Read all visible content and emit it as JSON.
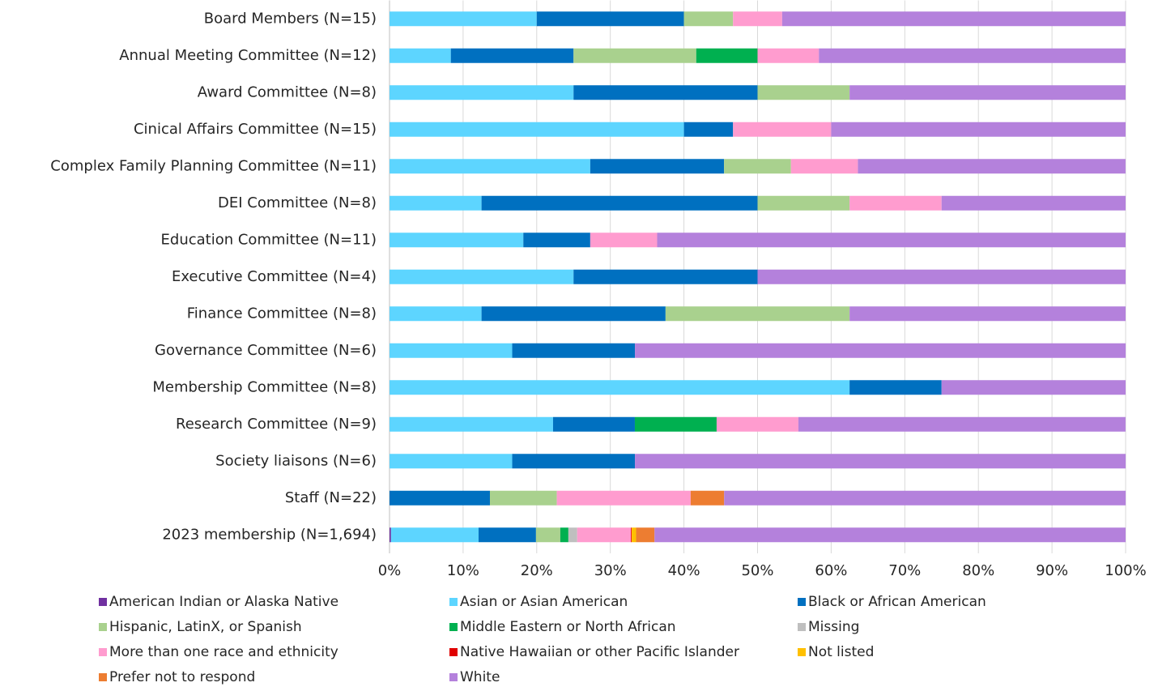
{
  "chart_data": {
    "type": "stacked_barh",
    "categories": [
      "Board Members (N=15)",
      "Annual Meeting Committee (N=12)",
      "Award Committee (N=8)",
      "Cinical Affairs Committee (N=15)",
      "Complex Family Planning Committee (N=11)",
      "DEI Committee (N=8)",
      "Education Committee (N=11)",
      "Executive Committee (N=4)",
      "Finance Committee (N=8)",
      "Governance Committee (N=6)",
      "Membership Committee (N=8)",
      "Research Committee (N=9)",
      "Society liaisons (N=6)",
      "Staff (N=22)",
      "2023 membership (N=1,694)"
    ],
    "series": [
      {
        "name": "American Indian or Alaska Native",
        "color": "#7030a0",
        "values": [
          0,
          0,
          0,
          0,
          0,
          0,
          0,
          0,
          0,
          0,
          0,
          0,
          0,
          0,
          0.2
        ]
      },
      {
        "name": "Asian or Asian American",
        "color": "#5dd5ff",
        "values": [
          20,
          8.33,
          25,
          40,
          27.27,
          12.5,
          18.18,
          25,
          12.5,
          16.67,
          62.5,
          22.22,
          16.67,
          0,
          11.9
        ]
      },
      {
        "name": "Black or African American",
        "color": "#0070c0",
        "values": [
          20,
          16.67,
          25,
          6.67,
          18.18,
          37.5,
          9.09,
          25,
          25,
          16.67,
          12.5,
          11.11,
          16.67,
          13.64,
          7.8
        ]
      },
      {
        "name": "Hispanic, LatinX, or Spanish",
        "color": "#a9d18e",
        "values": [
          6.67,
          16.67,
          12.5,
          0,
          9.09,
          12.5,
          0,
          0,
          25,
          0,
          0,
          0,
          0,
          9.09,
          3.3
        ]
      },
      {
        "name": "Middle Eastern or North African",
        "color": "#00b050",
        "values": [
          0,
          8.33,
          0,
          0,
          0,
          0,
          0,
          0,
          0,
          0,
          0,
          11.11,
          0,
          0,
          1.1
        ]
      },
      {
        "name": "Missing",
        "color": "#bfbfbf",
        "values": [
          0,
          0,
          0,
          0,
          0,
          0,
          0,
          0,
          0,
          0,
          0,
          0,
          0,
          0,
          1.2
        ]
      },
      {
        "name": "More than one race and ethnicity",
        "color": "#ff9ccf",
        "values": [
          6.67,
          8.33,
          0,
          13.33,
          9.09,
          12.5,
          9.09,
          0,
          0,
          0,
          0,
          11.11,
          0,
          18.18,
          7.3
        ]
      },
      {
        "name": "Native Hawaiian or other Pacific Islander",
        "color": "#e00000",
        "values": [
          0,
          0,
          0,
          0,
          0,
          0,
          0,
          0,
          0,
          0,
          0,
          0,
          0,
          0,
          0.1
        ]
      },
      {
        "name": "Not listed",
        "color": "#ffc000",
        "values": [
          0,
          0,
          0,
          0,
          0,
          0,
          0,
          0,
          0,
          0,
          0,
          0,
          0,
          0,
          0.6
        ]
      },
      {
        "name": "Prefer not to respond",
        "color": "#ed7d31",
        "values": [
          0,
          0,
          0,
          0,
          0,
          0,
          0,
          0,
          0,
          0,
          0,
          0,
          0,
          4.55,
          2.5
        ]
      },
      {
        "name": "White",
        "color": "#b481dc",
        "values": [
          46.67,
          41.67,
          37.5,
          40,
          36.36,
          25,
          63.64,
          50,
          37.5,
          66.67,
          25,
          44.44,
          66.67,
          54.55,
          64
        ]
      }
    ],
    "xlim": [
      0,
      100
    ],
    "xticks": [
      {
        "value": 0,
        "label": "0%"
      },
      {
        "value": 10,
        "label": "10%"
      },
      {
        "value": 20,
        "label": "20%"
      },
      {
        "value": 30,
        "label": "30%"
      },
      {
        "value": 40,
        "label": "40%"
      },
      {
        "value": 50,
        "label": "50%"
      },
      {
        "value": 60,
        "label": "60%"
      },
      {
        "value": 70,
        "label": "70%"
      },
      {
        "value": 80,
        "label": "80%"
      },
      {
        "value": 90,
        "label": "90%"
      },
      {
        "value": 100,
        "label": "100%"
      }
    ],
    "grid": true,
    "legend": "bottom"
  }
}
